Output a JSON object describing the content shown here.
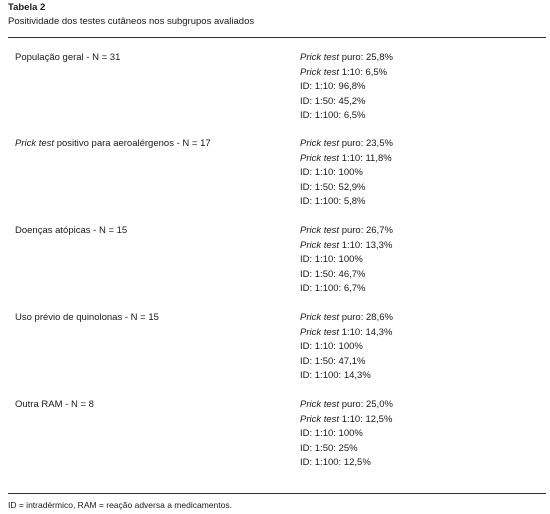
{
  "table": {
    "title": "Tabela 2",
    "caption": "Positividade dos testes cutâneos nos subgrupos avaliados",
    "groups": [
      {
        "label": [
          {
            "text": "População geral - N = 31"
          }
        ],
        "results": [
          [
            {
              "text": "Prick test",
              "italic": true
            },
            {
              "text": " puro: 25,8%"
            }
          ],
          [
            {
              "text": "Prick test",
              "italic": true
            },
            {
              "text": " 1:10: 6,5%"
            }
          ],
          [
            {
              "text": "ID: 1:10: 96,8%"
            }
          ],
          [
            {
              "text": "ID: 1:50: 45,2%"
            }
          ],
          [
            {
              "text": "ID: 1:100: 6,5%"
            }
          ]
        ]
      },
      {
        "label": [
          {
            "text": "Prick test",
            "italic": true
          },
          {
            "text": " positivo para aeroalérgenos - N = 17"
          }
        ],
        "results": [
          [
            {
              "text": "Prick test",
              "italic": true
            },
            {
              "text": " puro: 23,5%"
            }
          ],
          [
            {
              "text": "Prick test",
              "italic": true
            },
            {
              "text": " 1:10: 11,8%"
            }
          ],
          [
            {
              "text": "ID: 1:10: 100%"
            }
          ],
          [
            {
              "text": "ID: 1:50: 52,9%"
            }
          ],
          [
            {
              "text": "ID: 1:100: 5,8%"
            }
          ]
        ]
      },
      {
        "label": [
          {
            "text": "Doenças atópicas - N = 15"
          }
        ],
        "results": [
          [
            {
              "text": "Prick test",
              "italic": true
            },
            {
              "text": " puro: 26,7%"
            }
          ],
          [
            {
              "text": "Prick test",
              "italic": true
            },
            {
              "text": " 1:10: 13,3%"
            }
          ],
          [
            {
              "text": "ID: 1:10: 100%"
            }
          ],
          [
            {
              "text": "ID: 1:50: 46,7%"
            }
          ],
          [
            {
              "text": "ID: 1:100: 6,7%"
            }
          ]
        ]
      },
      {
        "label": [
          {
            "text": "Uso prévio de quinolonas - N = 15"
          }
        ],
        "results": [
          [
            {
              "text": "Prick test",
              "italic": true
            },
            {
              "text": " puro: 28,6%"
            }
          ],
          [
            {
              "text": "Prick test",
              "italic": true
            },
            {
              "text": " 1:10: 14,3%"
            }
          ],
          [
            {
              "text": "ID: 1:10: 100%"
            }
          ],
          [
            {
              "text": "ID: 1:50: 47,1%"
            }
          ],
          [
            {
              "text": "ID: 1:100: 14,3%"
            }
          ]
        ]
      },
      {
        "label": [
          {
            "text": "Outra RAM - N = 8"
          }
        ],
        "results": [
          [
            {
              "text": "Prick test",
              "italic": true
            },
            {
              "text": " puro: 25,0%"
            }
          ],
          [
            {
              "text": "Prick test",
              "italic": true
            },
            {
              "text": " 1:10: 12,5%"
            }
          ],
          [
            {
              "text": "ID: 1:10: 100%"
            }
          ],
          [
            {
              "text": "ID: 1:50: 25%"
            }
          ],
          [
            {
              "text": "ID: 1:100: 12,5%"
            }
          ]
        ]
      }
    ],
    "footnote": "ID = intradérmico, RAM = reação adversa a medicamentos."
  }
}
